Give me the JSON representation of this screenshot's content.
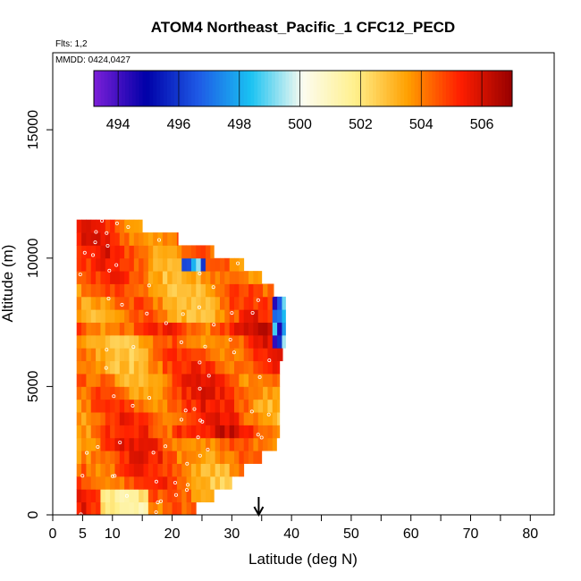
{
  "chart_data": {
    "type": "heatmap",
    "title": "ATOM4 Northeast_Pacific_1 CFC12_PECD",
    "flights_label": "Flts: 1,2",
    "dates_label": "MMDD: 0424,0427",
    "xlabel": "Latitude (deg N)",
    "ylabel": "Altitude (m)",
    "xlim": [
      0,
      84
    ],
    "ylim": [
      0,
      18000
    ],
    "x_ticks": [
      0,
      5,
      10,
      20,
      30,
      40,
      50,
      60,
      70,
      80
    ],
    "y_ticks": [
      0,
      5000,
      10000,
      15000
    ],
    "colorbar": {
      "min": 493.2,
      "max": 507.0,
      "tick_values": [
        494,
        496,
        498,
        500,
        502,
        504,
        506
      ],
      "tick_labels": [
        "494",
        "496",
        "498",
        "500",
        "502",
        "504",
        "506"
      ],
      "colors": [
        "#7c1fd8",
        "#0000a8",
        "#1e5ae6",
        "#19c2f2",
        "#fcfcf0",
        "#fff08c",
        "#ffa000",
        "#ff1e00",
        "#960000"
      ]
    },
    "altitude_bands": [
      {
        "alt_min": 0,
        "alt_max": 500,
        "lat_min": 4,
        "lat_max": 24
      },
      {
        "alt_min": 500,
        "alt_max": 1000,
        "lat_min": 4,
        "lat_max": 27
      },
      {
        "alt_min": 1000,
        "alt_max": 1500,
        "lat_min": 4,
        "lat_max": 30
      },
      {
        "alt_min": 1500,
        "alt_max": 2000,
        "lat_min": 4,
        "lat_max": 32
      },
      {
        "alt_min": 2000,
        "alt_max": 2500,
        "lat_min": 4,
        "lat_max": 35
      },
      {
        "alt_min": 2500,
        "alt_max": 3000,
        "lat_min": 4,
        "lat_max": 37.5
      },
      {
        "alt_min": 3000,
        "alt_max": 3500,
        "lat_min": 4,
        "lat_max": 38
      },
      {
        "alt_min": 3500,
        "alt_max": 4000,
        "lat_min": 4,
        "lat_max": 38
      },
      {
        "alt_min": 4000,
        "alt_max": 4500,
        "lat_min": 4,
        "lat_max": 38
      },
      {
        "alt_min": 4500,
        "alt_max": 5000,
        "lat_min": 4,
        "lat_max": 38
      },
      {
        "alt_min": 5000,
        "alt_max": 5500,
        "lat_min": 4,
        "lat_max": 38
      },
      {
        "alt_min": 5500,
        "alt_max": 6000,
        "lat_min": 4,
        "lat_max": 38
      },
      {
        "alt_min": 6000,
        "alt_max": 6500,
        "lat_min": 4,
        "lat_max": 38.5
      },
      {
        "alt_min": 6500,
        "alt_max": 7000,
        "lat_min": 4,
        "lat_max": 39
      },
      {
        "alt_min": 7000,
        "alt_max": 7500,
        "lat_min": 4,
        "lat_max": 39
      },
      {
        "alt_min": 7500,
        "alt_max": 8000,
        "lat_min": 4,
        "lat_max": 39
      },
      {
        "alt_min": 8000,
        "alt_max": 8500,
        "lat_min": 4,
        "lat_max": 39
      },
      {
        "alt_min": 8500,
        "alt_max": 9000,
        "lat_min": 4,
        "lat_max": 37
      },
      {
        "alt_min": 9000,
        "alt_max": 9500,
        "lat_min": 4,
        "lat_max": 35
      },
      {
        "alt_min": 9500,
        "alt_max": 10000,
        "lat_min": 4,
        "lat_max": 32
      },
      {
        "alt_min": 10000,
        "alt_max": 10500,
        "lat_min": 4,
        "lat_max": 27
      },
      {
        "alt_min": 10500,
        "alt_max": 11000,
        "lat_min": 4,
        "lat_max": 21
      },
      {
        "alt_min": 11000,
        "alt_max": 11500,
        "lat_min": 4,
        "lat_max": 15
      }
    ],
    "marker": {
      "lat": 34.5,
      "label": "arrow"
    }
  }
}
